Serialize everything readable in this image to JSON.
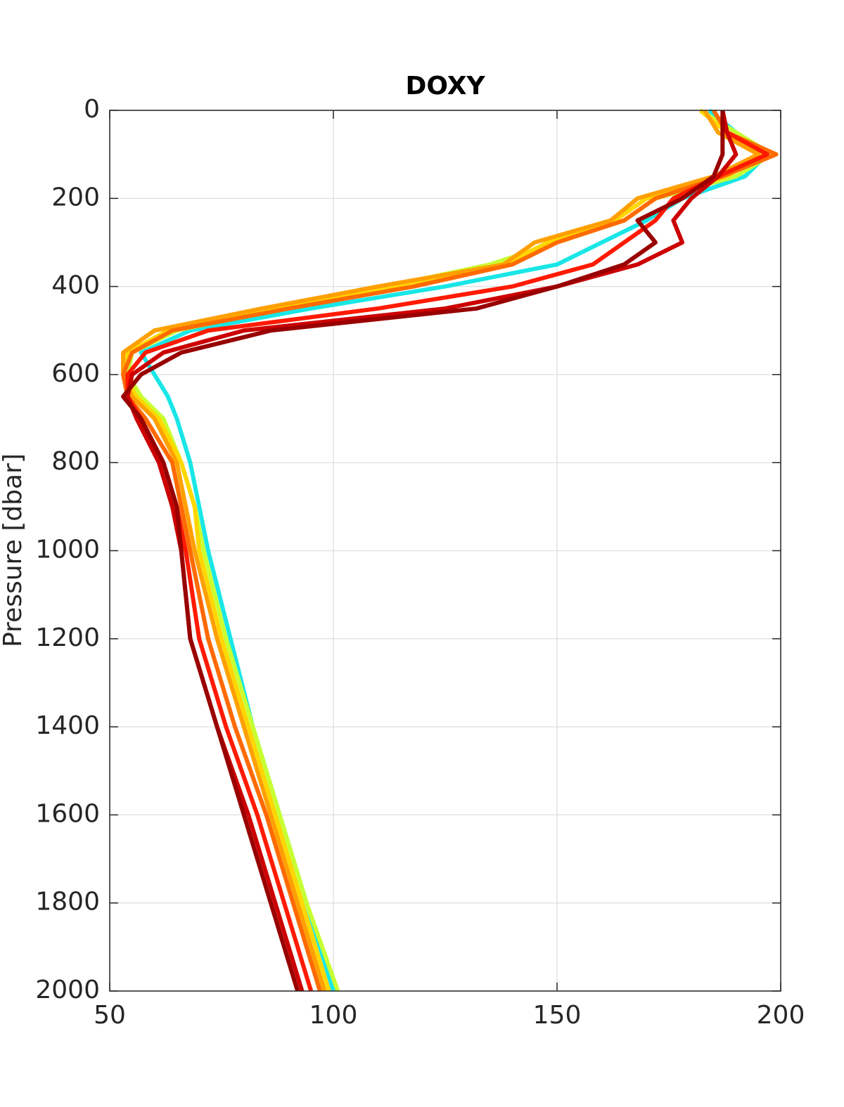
{
  "chart_data": {
    "type": "line",
    "title": "DOXY",
    "y_label": "Pressure [dbar]",
    "y": [
      0,
      50,
      100,
      150,
      200,
      250,
      300,
      350,
      400,
      450,
      500,
      550,
      600,
      650,
      700,
      800,
      900,
      1000,
      1200,
      1400,
      1600,
      1800,
      2000
    ],
    "y_reversed": true,
    "series": [
      {
        "color": "#19e6e6",
        "values": [
          184,
          190,
          197,
          192,
          178,
          170,
          160,
          150,
          125,
          95,
          68,
          57,
          60,
          63,
          65,
          68,
          70,
          72,
          77,
          82,
          88,
          94,
          100
        ]
      },
      {
        "color": "#c8ff32",
        "values": [
          182,
          190,
          198,
          190,
          172,
          165,
          150,
          135,
          112,
          88,
          65,
          55,
          54,
          57,
          62,
          66,
          69,
          71,
          76,
          82,
          88,
          94,
          101
        ]
      },
      {
        "color": "#ffd700",
        "values": [
          182,
          188,
          196,
          188,
          170,
          163,
          148,
          138,
          113,
          87,
          63,
          54,
          53,
          56,
          61,
          66,
          69,
          70,
          75,
          81,
          87,
          93,
          99
        ]
      },
      {
        "color": "#ffa000",
        "values": [
          183,
          186,
          195,
          185,
          168,
          162,
          145,
          138,
          110,
          84,
          60,
          53,
          53,
          55,
          60,
          65,
          67,
          69,
          74,
          80,
          86,
          92,
          98
        ]
      },
      {
        "color": "#ff6a00",
        "values": [
          185,
          188,
          199,
          187,
          172,
          165,
          150,
          140,
          118,
          90,
          64,
          55,
          53,
          54,
          58,
          64,
          66,
          68,
          72,
          78,
          85,
          91,
          97
        ]
      },
      {
        "color": "#ff1a00",
        "values": [
          187,
          188,
          197,
          186,
          176,
          172,
          165,
          158,
          140,
          110,
          72,
          58,
          54,
          54,
          57,
          62,
          65,
          67,
          70,
          76,
          83,
          89,
          95
        ]
      },
      {
        "color": "#cc0000",
        "values": [
          187,
          188,
          190,
          186,
          180,
          176,
          178,
          168,
          150,
          125,
          80,
          62,
          55,
          54,
          56,
          61,
          64,
          66,
          68,
          74,
          81,
          87,
          93
        ]
      },
      {
        "color": "#990000",
        "values": [
          187,
          187,
          187,
          185,
          178,
          168,
          172,
          165,
          150,
          132,
          86,
          66,
          57,
          53,
          57,
          62,
          65,
          66,
          68,
          74,
          80,
          86,
          92
        ]
      }
    ],
    "xlim": [
      50,
      200
    ],
    "xticks": [
      50,
      100,
      150,
      200
    ],
    "ylim": [
      0,
      2000
    ],
    "yticks": [
      0,
      200,
      400,
      600,
      800,
      1000,
      1200,
      1400,
      1600,
      1800,
      2000
    ],
    "grid": true
  }
}
